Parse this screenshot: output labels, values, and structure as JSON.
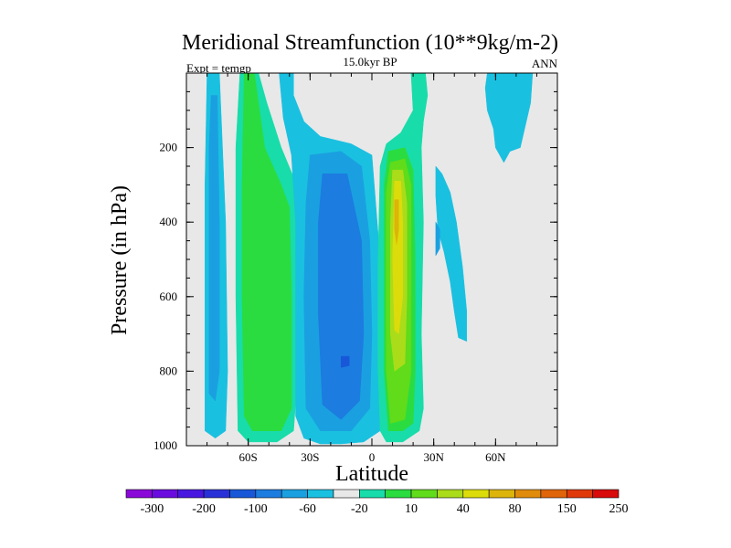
{
  "chart_data": {
    "type": "contour",
    "title": "Meridional Streamfunction (10**9kg/m-2)",
    "subtitle": "15.0kyr BP",
    "left_label": "Expt = temgp",
    "right_label": "ANN",
    "xlabel": "Latitude",
    "ylabel": "Pressure (in hPa)",
    "xlim": [
      -90,
      90
    ],
    "ylim": [
      1000,
      0
    ],
    "x_ticks": [
      {
        "value": -60,
        "label": "60S"
      },
      {
        "value": -30,
        "label": "30S"
      },
      {
        "value": 0,
        "label": "0"
      },
      {
        "value": 30,
        "label": "30N"
      },
      {
        "value": 60,
        "label": "60N"
      }
    ],
    "y_ticks": [
      {
        "value": 200,
        "label": "200"
      },
      {
        "value": 400,
        "label": "400"
      },
      {
        "value": 600,
        "label": "600"
      },
      {
        "value": 800,
        "label": "800"
      },
      {
        "value": 1000,
        "label": "1000"
      }
    ],
    "background_color": "#e8e8e8",
    "colorbar": {
      "colors": [
        "#8a08d8",
        "#6a0ce0",
        "#4818e0",
        "#2a30d8",
        "#1858d8",
        "#1c7ce0",
        "#1aa0e0",
        "#1ac0e0",
        "#e8e8e8",
        "#18dcaa",
        "#2adc40",
        "#60dc1a",
        "#aadc1a",
        "#dcdc0a",
        "#dcb40a",
        "#e08c0a",
        "#e0640a",
        "#e03a0a",
        "#d80a0a"
      ],
      "labels": [
        {
          "index": 1,
          "label": "-300"
        },
        {
          "index": 3,
          "label": "-200"
        },
        {
          "index": 5,
          "label": "-100"
        },
        {
          "index": 7,
          "label": "-60"
        },
        {
          "index": 9,
          "label": "-20"
        },
        {
          "index": 11,
          "label": "10"
        },
        {
          "index": 13,
          "label": "40"
        },
        {
          "index": 15,
          "label": "80"
        },
        {
          "index": 17,
          "label": "150"
        },
        {
          "index": 19,
          "label": "250"
        }
      ]
    },
    "contour_regions": [
      {
        "name": "sh-polar-cell",
        "color": "#1ac0e0",
        "points": [
          [
            -80,
            0
          ],
          [
            -74,
            0
          ],
          [
            -71,
            400
          ],
          [
            -70,
            800
          ],
          [
            -71,
            960
          ],
          [
            -76,
            980
          ],
          [
            -81,
            960
          ],
          [
            -81,
            700
          ],
          [
            -81,
            300
          ]
        ]
      },
      {
        "name": "sh-polar-cell",
        "color": "#1aa0e0",
        "points": [
          [
            -78,
            60
          ],
          [
            -75,
            60
          ],
          [
            -74,
            400
          ],
          [
            -74,
            800
          ],
          [
            -76,
            880
          ],
          [
            -79,
            860
          ],
          [
            -79,
            500
          ],
          [
            -79,
            200
          ]
        ]
      },
      {
        "name": "ferrel-cell",
        "color": "#18dcaa",
        "points": [
          [
            -64,
            0
          ],
          [
            -55,
            0
          ],
          [
            -51,
            80
          ],
          [
            -44,
            200
          ],
          [
            -38,
            280
          ],
          [
            -36,
            400
          ],
          [
            -36,
            800
          ],
          [
            -38,
            960
          ],
          [
            -46,
            990
          ],
          [
            -60,
            990
          ],
          [
            -65,
            960
          ],
          [
            -66,
            600
          ],
          [
            -66,
            200
          ]
        ]
      },
      {
        "name": "ferrel-cell",
        "color": "#2adc40",
        "points": [
          [
            -62,
            0
          ],
          [
            -57,
            0
          ],
          [
            -52,
            200
          ],
          [
            -44,
            300
          ],
          [
            -40,
            360
          ],
          [
            -39,
            600
          ],
          [
            -39,
            900
          ],
          [
            -44,
            960
          ],
          [
            -58,
            960
          ],
          [
            -62,
            920
          ],
          [
            -63,
            600
          ],
          [
            -63,
            300
          ]
        ]
      },
      {
        "name": "sh-hadley-cell",
        "color": "#1ac0e0",
        "points": [
          [
            -45,
            0
          ],
          [
            -38,
            0
          ],
          [
            -38,
            60
          ],
          [
            -33,
            130
          ],
          [
            -25,
            170
          ],
          [
            -10,
            190
          ],
          [
            0,
            220
          ],
          [
            4,
            500
          ],
          [
            5,
            800
          ],
          [
            4,
            960
          ],
          [
            0,
            975
          ],
          [
            -4,
            990
          ],
          [
            -15,
            995
          ],
          [
            -25,
            995
          ],
          [
            -33,
            980
          ],
          [
            -37,
            920
          ],
          [
            -37,
            700
          ],
          [
            -37,
            400
          ],
          [
            -39,
            220
          ],
          [
            -43,
            120
          ]
        ]
      },
      {
        "name": "sh-hadley-cell",
        "color": "#1aa0e0",
        "points": [
          [
            -30,
            220
          ],
          [
            -15,
            210
          ],
          [
            -5,
            250
          ],
          [
            -1,
            450
          ],
          [
            0,
            700
          ],
          [
            -1,
            900
          ],
          [
            -10,
            960
          ],
          [
            -25,
            960
          ],
          [
            -32,
            900
          ],
          [
            -33,
            600
          ],
          [
            -32,
            350
          ]
        ]
      },
      {
        "name": "sh-hadley-cell",
        "color": "#1c7ce0",
        "points": [
          [
            -24,
            270
          ],
          [
            -12,
            270
          ],
          [
            -5,
            450
          ],
          [
            -4,
            700
          ],
          [
            -6,
            880
          ],
          [
            -15,
            930
          ],
          [
            -24,
            890
          ],
          [
            -26,
            650
          ],
          [
            -26,
            400
          ]
        ]
      },
      {
        "name": "sh-hadley-cell",
        "color": "#1858d8",
        "points": [
          [
            -15,
            760
          ],
          [
            -11,
            760
          ],
          [
            -11,
            785
          ],
          [
            -15,
            790
          ]
        ]
      },
      {
        "name": "nh-hadley-cell",
        "color": "#18dcaa",
        "points": [
          [
            19,
            0
          ],
          [
            26,
            0
          ],
          [
            27,
            60
          ],
          [
            25,
            130
          ],
          [
            24,
            200
          ],
          [
            25,
            400
          ],
          [
            24,
            700
          ],
          [
            25,
            900
          ],
          [
            23,
            960
          ],
          [
            15,
            990
          ],
          [
            7,
            990
          ],
          [
            4,
            960
          ],
          [
            3,
            800
          ],
          [
            3,
            500
          ],
          [
            4,
            250
          ],
          [
            7,
            190
          ],
          [
            14,
            160
          ],
          [
            20,
            100
          ]
        ]
      },
      {
        "name": "nh-hadley-cell",
        "color": "#2adc40",
        "points": [
          [
            8,
            210
          ],
          [
            16,
            200
          ],
          [
            20,
            260
          ],
          [
            21,
            500
          ],
          [
            21,
            800
          ],
          [
            20,
            940
          ],
          [
            15,
            960
          ],
          [
            8,
            960
          ],
          [
            6,
            800
          ],
          [
            6,
            500
          ],
          [
            6,
            300
          ]
        ]
      },
      {
        "name": "nh-hadley-cell",
        "color": "#60dc1a",
        "points": [
          [
            9,
            240
          ],
          [
            16,
            230
          ],
          [
            19,
            300
          ],
          [
            19,
            600
          ],
          [
            19,
            800
          ],
          [
            16,
            930
          ],
          [
            9,
            940
          ],
          [
            7,
            800
          ],
          [
            7,
            500
          ],
          [
            7,
            320
          ]
        ]
      },
      {
        "name": "nh-hadley-cell",
        "color": "#aadc1a",
        "points": [
          [
            10,
            260
          ],
          [
            15,
            260
          ],
          [
            17,
            350
          ],
          [
            17,
            600
          ],
          [
            16,
            780
          ],
          [
            11,
            800
          ],
          [
            9,
            700
          ],
          [
            9,
            400
          ]
        ]
      },
      {
        "name": "nh-hadley-cell",
        "color": "#dcdc0a",
        "points": [
          [
            11,
            290
          ],
          [
            14,
            290
          ],
          [
            15,
            400
          ],
          [
            15,
            600
          ],
          [
            13,
            700
          ],
          [
            11,
            690
          ],
          [
            10,
            500
          ]
        ]
      },
      {
        "name": "nh-hadley-cell",
        "color": "#dcb40a",
        "points": [
          [
            11,
            340
          ],
          [
            13,
            340
          ],
          [
            13,
            420
          ],
          [
            12,
            460
          ],
          [
            11,
            420
          ]
        ]
      },
      {
        "name": "nh-ferrel-cell",
        "color": "#1ac0e0",
        "points": [
          [
            31,
            250
          ],
          [
            34,
            270
          ],
          [
            38,
            320
          ],
          [
            41,
            400
          ],
          [
            44,
            520
          ],
          [
            46,
            640
          ],
          [
            46,
            720
          ],
          [
            42,
            710
          ],
          [
            40,
            640
          ],
          [
            38,
            560
          ],
          [
            35,
            480
          ],
          [
            32,
            420
          ],
          [
            31,
            330
          ]
        ]
      },
      {
        "name": "nh-ferrel-cell",
        "color": "#1aa0e0",
        "points": [
          [
            31,
            400
          ],
          [
            33,
            420
          ],
          [
            33,
            470
          ],
          [
            31,
            490
          ]
        ]
      },
      {
        "name": "nh-polar-cell",
        "color": "#1ac0e0",
        "points": [
          [
            56,
            0
          ],
          [
            78,
            0
          ],
          [
            77,
            80
          ],
          [
            72,
            200
          ],
          [
            67,
            210
          ],
          [
            64,
            240
          ],
          [
            60,
            200
          ],
          [
            59,
            150
          ],
          [
            56,
            100
          ],
          [
            55,
            40
          ]
        ]
      }
    ]
  }
}
